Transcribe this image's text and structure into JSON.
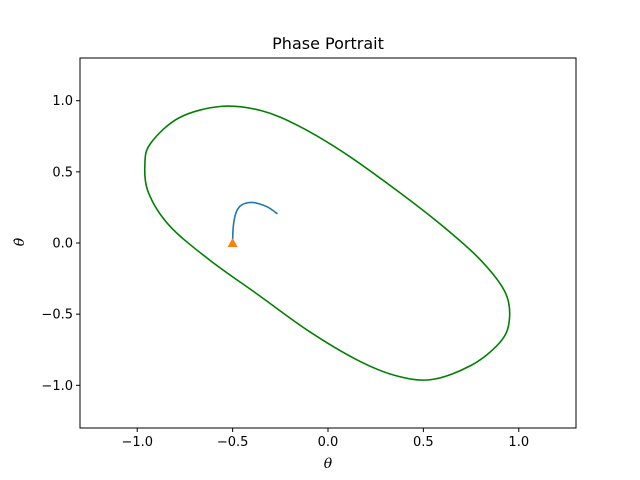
{
  "chart_data": {
    "type": "line",
    "title": "Phase Portrait",
    "xlabel": "θ",
    "ylabel": "θ̇",
    "xlim": [
      -1.3,
      1.3
    ],
    "ylim": [
      -1.3,
      1.3
    ],
    "xticks": [
      -1.0,
      -0.5,
      0.0,
      0.5,
      1.0
    ],
    "xtick_labels": [
      "−1.0",
      "−0.5",
      "0.0",
      "0.5",
      "1.0"
    ],
    "yticks": [
      -1.0,
      -0.5,
      0.0,
      0.5,
      1.0
    ],
    "ytick_labels": [
      "−1.0",
      "−0.5",
      "0.0",
      "0.5",
      "1.0"
    ],
    "grid": false,
    "series": [
      {
        "kind": "closed-curve",
        "color": "#008000",
        "points": [
          [
            0.54,
            -0.96
          ],
          [
            0.75,
            -0.86
          ],
          [
            0.9,
            -0.7
          ],
          [
            0.95,
            -0.55
          ],
          [
            0.93,
            -0.35
          ],
          [
            0.8,
            -0.12
          ],
          [
            0.6,
            0.12
          ],
          [
            0.37,
            0.36
          ],
          [
            0.1,
            0.62
          ],
          [
            -0.15,
            0.82
          ],
          [
            -0.35,
            0.93
          ],
          [
            -0.56,
            0.96
          ],
          [
            -0.78,
            0.88
          ],
          [
            -0.93,
            0.7
          ],
          [
            -0.96,
            0.55
          ],
          [
            -0.94,
            0.35
          ],
          [
            -0.83,
            0.12
          ],
          [
            -0.62,
            -0.12
          ],
          [
            -0.37,
            -0.36
          ],
          [
            -0.1,
            -0.62
          ],
          [
            0.15,
            -0.82
          ],
          [
            0.35,
            -0.93
          ]
        ]
      },
      {
        "kind": "path",
        "color": "#1f77b4",
        "points": [
          [
            -0.5,
            0.0
          ],
          [
            -0.498,
            0.09
          ],
          [
            -0.492,
            0.16
          ],
          [
            -0.48,
            0.22
          ],
          [
            -0.46,
            0.26
          ],
          [
            -0.43,
            0.28
          ],
          [
            -0.395,
            0.285
          ],
          [
            -0.36,
            0.275
          ],
          [
            -0.32,
            0.255
          ],
          [
            -0.29,
            0.23
          ],
          [
            -0.265,
            0.205
          ]
        ]
      }
    ],
    "markers": [
      {
        "x": -0.5,
        "y": 0.0,
        "shape": "triangle",
        "color": "#ff7f0e"
      }
    ]
  }
}
